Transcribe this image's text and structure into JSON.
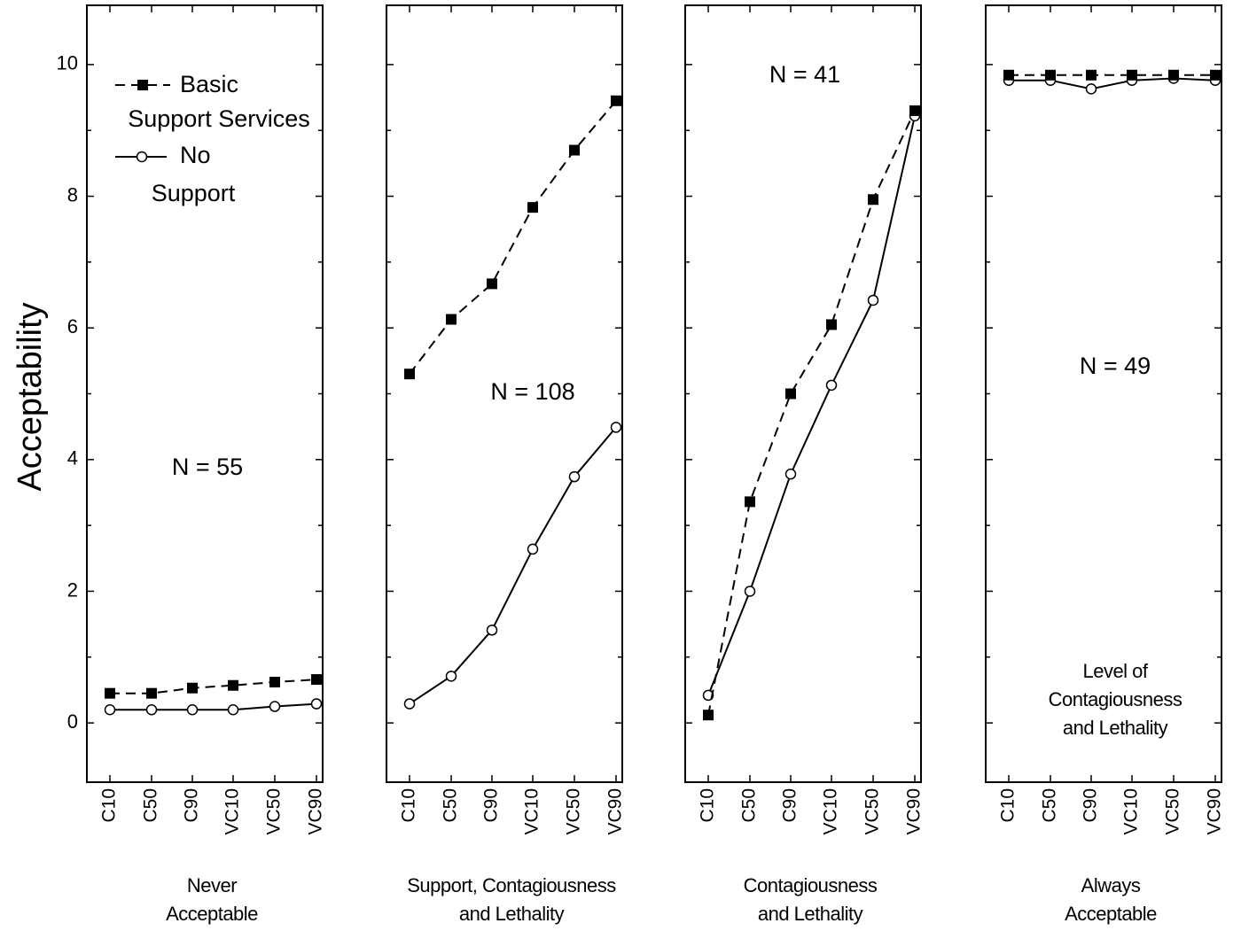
{
  "chart_data": {
    "type": "line",
    "ylabel": "Acceptability",
    "ylim": [
      -0.9,
      10.9
    ],
    "yticks": [
      0,
      2,
      4,
      6,
      8,
      10
    ],
    "categories": [
      "C10",
      "C50",
      "C90",
      "VC10",
      "VC50",
      "VC90"
    ],
    "legend": {
      "placement": "top-left of first panel",
      "entries": [
        {
          "series": "basic",
          "lines": [
            "Basic",
            "Support Services"
          ],
          "style": "dashed",
          "marker": "filled-square"
        },
        {
          "series": "none",
          "lines": [
            "No",
            "Support"
          ],
          "style": "solid",
          "marker": "open-circle"
        }
      ]
    },
    "panels": [
      {
        "title_lines": [
          "Never",
          "Acceptable"
        ],
        "n_label": "N = 55",
        "series": [
          {
            "key": "basic",
            "values": [
              0.45,
              0.45,
              0.53,
              0.57,
              0.62,
              0.66
            ]
          },
          {
            "key": "none",
            "values": [
              0.2,
              0.2,
              0.2,
              0.2,
              0.25,
              0.29
            ]
          }
        ]
      },
      {
        "title_lines": [
          "Support, Contagiousness",
          "and Lethality"
        ],
        "n_label": "N = 108",
        "series": [
          {
            "key": "basic",
            "values": [
              5.3,
              6.13,
              6.67,
              7.83,
              8.7,
              9.45
            ]
          },
          {
            "key": "none",
            "values": [
              0.29,
              0.71,
              1.41,
              2.64,
              3.74,
              4.49
            ]
          }
        ]
      },
      {
        "title_lines": [
          "Contagiousness",
          "and Lethality"
        ],
        "n_label": "N = 41",
        "series": [
          {
            "key": "basic",
            "values": [
              0.12,
              3.36,
              5.0,
              6.05,
              7.95,
              9.3
            ]
          },
          {
            "key": "none",
            "values": [
              0.42,
              2.0,
              3.78,
              5.13,
              6.42,
              9.22
            ]
          }
        ]
      },
      {
        "title_lines": [
          "Always",
          "Acceptable"
        ],
        "n_label": "N = 49",
        "annotation_lines": [
          "Level of",
          "Contagiousness",
          "and Lethality"
        ],
        "series": [
          {
            "key": "basic",
            "values": [
              9.84,
              9.84,
              9.84,
              9.84,
              9.84,
              9.84
            ]
          },
          {
            "key": "none",
            "values": [
              9.76,
              9.76,
              9.63,
              9.76,
              9.79,
              9.76
            ]
          }
        ]
      }
    ]
  }
}
